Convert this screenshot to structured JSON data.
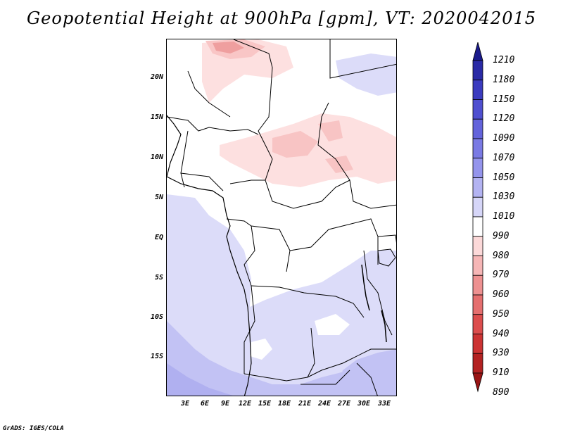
{
  "title": "Geopotential Height at 900hPa [gpm], VT: 2020042015",
  "credit": "GrADS: IGES/COLA",
  "axes": {
    "lat_labels": [
      "20N",
      "15N",
      "10N",
      "5N",
      "EQ",
      "5S",
      "10S",
      "15S"
    ],
    "lon_labels": [
      "3E",
      "6E",
      "9E",
      "12E",
      "15E",
      "18E",
      "21E",
      "24E",
      "27E",
      "30E",
      "33E"
    ]
  },
  "colorbar": {
    "levels": [
      "1210",
      "1180",
      "1150",
      "1120",
      "1090",
      "1070",
      "1050",
      "1030",
      "1010",
      "990",
      "980",
      "970",
      "960",
      "950",
      "940",
      "930",
      "910",
      "890"
    ],
    "colors": [
      "#1a1a8c",
      "#2a2aa6",
      "#3b3bbf",
      "#4f4fd0",
      "#6363db",
      "#7a7ae4",
      "#9494ec",
      "#b3b3f2",
      "#d6d6f8",
      "#ffffff",
      "#fcd9d9",
      "#f6b6b6",
      "#ee9191",
      "#e56f6f",
      "#dc4d4d",
      "#cc3333",
      "#b32222",
      "#991414"
    ]
  }
}
